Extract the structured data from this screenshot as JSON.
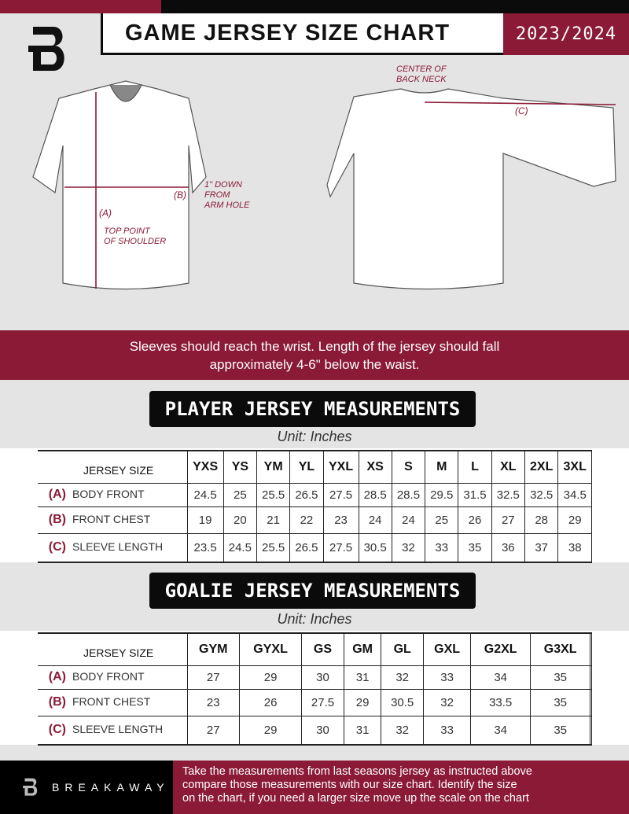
{
  "header": {
    "title": "GAME JERSEY SIZE CHART",
    "season": "2023/2024"
  },
  "diagram": {
    "label_a": "(A)",
    "label_b": "(B)",
    "label_c": "(C)",
    "note_shoulder": [
      "TOP POINT",
      "OF SHOULDER"
    ],
    "note_armhole": [
      "1\" DOWN",
      "FROM",
      "ARM HOLE"
    ],
    "note_neck": [
      "CENTER OF",
      "BACK NECK"
    ]
  },
  "band": {
    "lines": [
      "Sleeves should reach the wrist. Length of the jersey should fall",
      "approximately 4-6\" below the waist."
    ]
  },
  "player": {
    "title": "PLAYER JERSEY MEASUREMENTS",
    "unit": "Unit: Inches",
    "header_label": "JERSEY SIZE",
    "sizes": [
      "YXS",
      "YS",
      "YM",
      "YL",
      "YXL",
      "XS",
      "S",
      "M",
      "L",
      "XL",
      "2XL",
      "3XL"
    ],
    "rows": [
      {
        "letter": "(A)",
        "label": "BODY FRONT",
        "values": [
          "24.5",
          "25",
          "25.5",
          "26.5",
          "27.5",
          "28.5",
          "28.5",
          "29.5",
          "31.5",
          "32.5",
          "32.5",
          "34.5"
        ]
      },
      {
        "letter": "(B)",
        "label": "FRONT CHEST",
        "values": [
          "19",
          "20",
          "21",
          "22",
          "23",
          "24",
          "24",
          "25",
          "26",
          "27",
          "28",
          "29"
        ]
      },
      {
        "letter": "(C)",
        "label": "SLEEVE LENGTH",
        "values": [
          "23.5",
          "24.5",
          "25.5",
          "26.5",
          "27.5",
          "30.5",
          "32",
          "33",
          "35",
          "36",
          "37",
          "38"
        ]
      }
    ]
  },
  "goalie": {
    "title": "GOALIE JERSEY MEASUREMENTS",
    "unit": "Unit: Inches",
    "header_label": "JERSEY SIZE",
    "sizes": [
      "GYM",
      "GYXL",
      "GS",
      "GM",
      "GL",
      "GXL",
      "G2XL",
      "G3XL",
      ""
    ],
    "rows": [
      {
        "letter": "(A)",
        "label": "BODY FRONT",
        "values": [
          "27",
          "29",
          "30",
          "31",
          "32",
          "33",
          "34",
          "35",
          ""
        ]
      },
      {
        "letter": "(B)",
        "label": "FRONT CHEST",
        "values": [
          "23",
          "26",
          "27.5",
          "29",
          "30.5",
          "32",
          "33.5",
          "35",
          ""
        ]
      },
      {
        "letter": "(C)",
        "label": "SLEEVE LENGTH",
        "values": [
          "27",
          "29",
          "30",
          "31",
          "32",
          "33",
          "34",
          "35",
          ""
        ]
      }
    ]
  },
  "footer": {
    "brand": "BREAKAWAY",
    "text": [
      "Take the measurements from last seasons jersey as instructed above",
      "compare those measurements  with our size chart. Identify the size",
      "on the chart, if you need a larger size move up the scale on the chart"
    ]
  },
  "colors": {
    "accent": "#8b1a36",
    "dark": "#0b0b0b",
    "background": "#e4e4e5"
  }
}
